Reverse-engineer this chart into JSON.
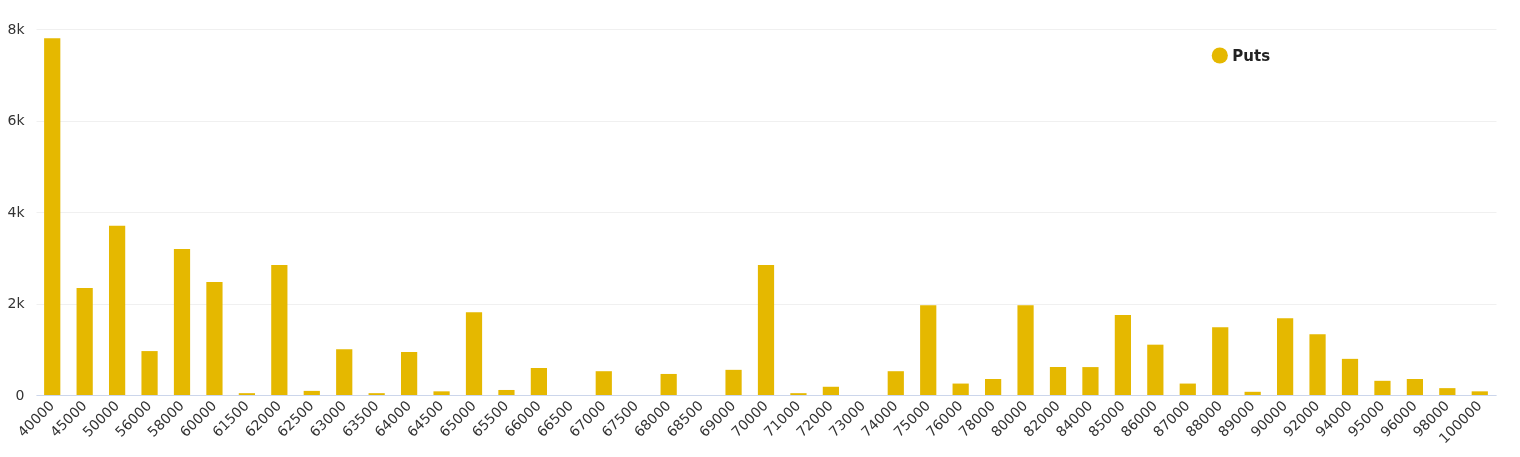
{
  "chart_data": {
    "type": "bar",
    "categories": [
      "40000",
      "45000",
      "50000",
      "56000",
      "58000",
      "60000",
      "61500",
      "62000",
      "62500",
      "63000",
      "63500",
      "64000",
      "64500",
      "65000",
      "65500",
      "66000",
      "66500",
      "67000",
      "67500",
      "68000",
      "68500",
      "69000",
      "70000",
      "71000",
      "72000",
      "73000",
      "74000",
      "75000",
      "76000",
      "78000",
      "80000",
      "82000",
      "84000",
      "85000",
      "86000",
      "87000",
      "88000",
      "89000",
      "90000",
      "92000",
      "94000",
      "95000",
      "96000",
      "98000",
      "100000"
    ],
    "series": [
      {
        "name": "Puts",
        "color": "#e5b800",
        "values": [
          7800,
          2340,
          3700,
          960,
          3190,
          2470,
          40,
          2840,
          90,
          1000,
          40,
          940,
          80,
          1810,
          110,
          590,
          0,
          520,
          0,
          460,
          0,
          550,
          2840,
          40,
          180,
          0,
          520,
          1960,
          250,
          350,
          1960,
          610,
          610,
          1750,
          1100,
          250,
          1480,
          70,
          1680,
          1330,
          790,
          310,
          350,
          150,
          80
        ]
      }
    ],
    "ylim": [
      0,
      8000
    ],
    "yticks": [
      0,
      {
        "value": 2000,
        "label": "2k"
      },
      {
        "value": 4000,
        "label": "4k"
      },
      {
        "value": 6000,
        "label": "6k"
      },
      {
        "value": 8000,
        "label": "8k"
      }
    ],
    "grid": "y",
    "legend": "top right"
  }
}
